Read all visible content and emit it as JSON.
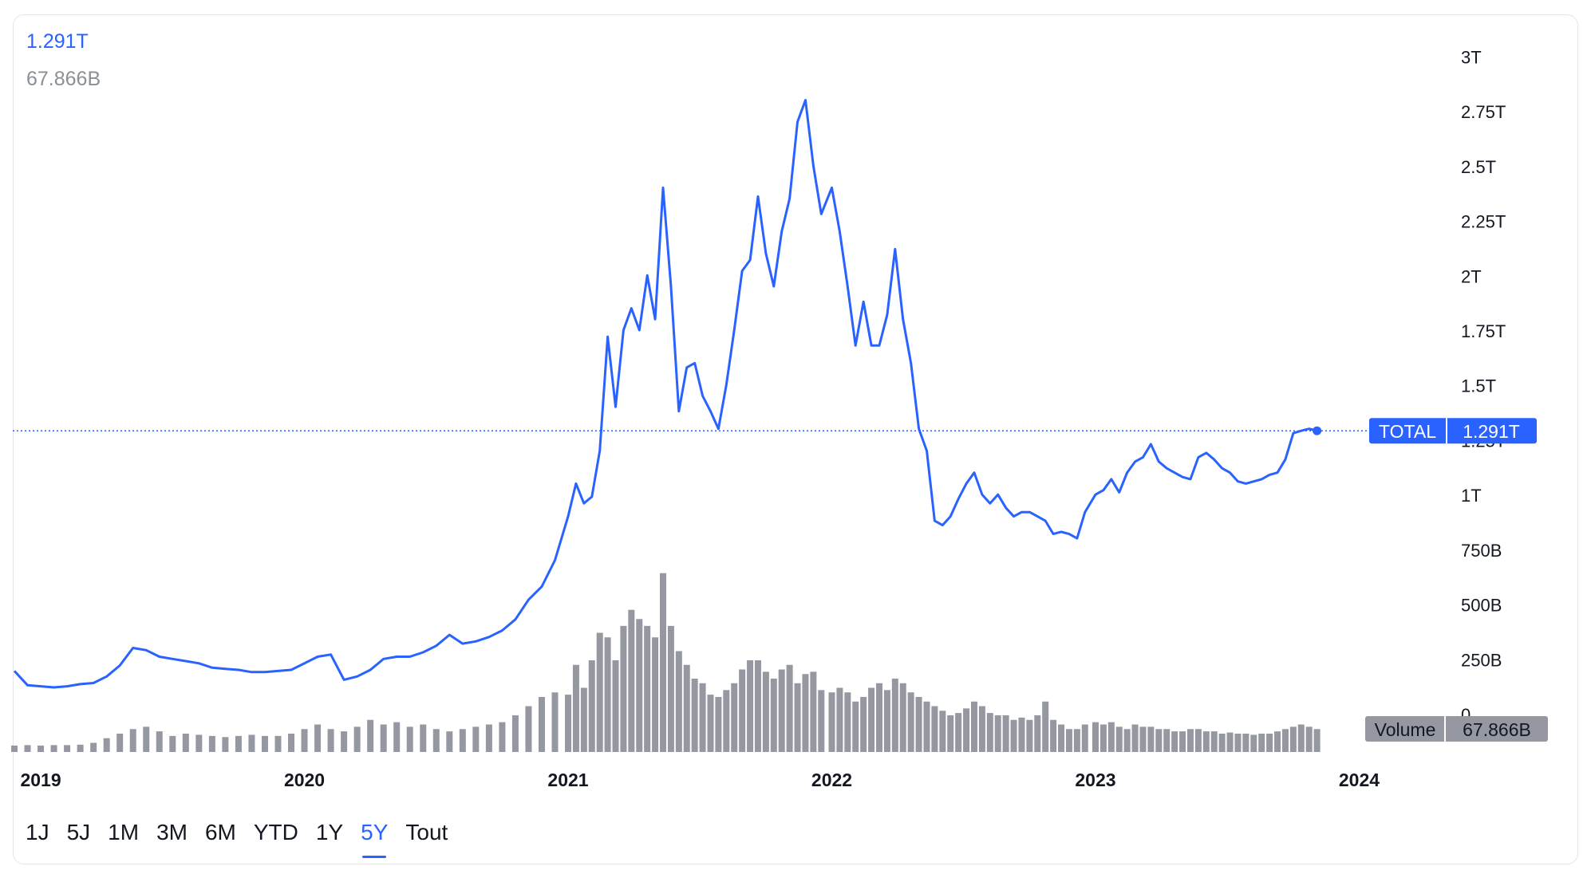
{
  "legend": {
    "total_value": "1.291T",
    "volume_value": "67.866B"
  },
  "range_buttons": [
    {
      "label": "1J"
    },
    {
      "label": "5J"
    },
    {
      "label": "1M"
    },
    {
      "label": "3M"
    },
    {
      "label": "6M"
    },
    {
      "label": "YTD"
    },
    {
      "label": "1Y"
    },
    {
      "label": "5Y",
      "active": true
    },
    {
      "label": "Tout"
    }
  ],
  "colors": {
    "line": "#2962ff",
    "volume_bars": "#9598a1",
    "axis_text": "#131722"
  },
  "chart_data": {
    "type": "line",
    "x_tick_labels": [
      "2019",
      "2020",
      "2021",
      "2022",
      "2023",
      "2024"
    ],
    "y_tick_labels": [
      "0",
      "250B",
      "500B",
      "750B",
      "1T",
      "1.25T",
      "1.5T",
      "1.75T",
      "2T",
      "2.25T",
      "2.5T",
      "2.75T",
      "3T"
    ],
    "y_ticks": [
      0,
      0.25,
      0.5,
      0.75,
      1,
      1.25,
      1.5,
      1.75,
      2,
      2.25,
      2.5,
      2.75,
      3
    ],
    "y_unit": "T",
    "ylim": [
      0,
      3.02
    ],
    "xlim": [
      2018.9,
      2024.05
    ],
    "last_price_label": {
      "name": "TOTAL",
      "value": "1.291T",
      "y": 1.291
    },
    "volume_label": {
      "name": "Volume",
      "value": "67.866B"
    },
    "series": [
      {
        "name": "TOTAL",
        "x": [
          2018.9,
          2018.95,
          2019.0,
          2019.05,
          2019.1,
          2019.15,
          2019.2,
          2019.25,
          2019.3,
          2019.35,
          2019.4,
          2019.45,
          2019.5,
          2019.55,
          2019.6,
          2019.65,
          2019.7,
          2019.75,
          2019.8,
          2019.85,
          2019.9,
          2019.95,
          2020.0,
          2020.05,
          2020.1,
          2020.15,
          2020.2,
          2020.25,
          2020.3,
          2020.35,
          2020.4,
          2020.45,
          2020.5,
          2020.55,
          2020.6,
          2020.65,
          2020.7,
          2020.75,
          2020.8,
          2020.85,
          2020.9,
          2020.95,
          2021.0,
          2021.03,
          2021.06,
          2021.09,
          2021.12,
          2021.15,
          2021.18,
          2021.21,
          2021.24,
          2021.27,
          2021.3,
          2021.33,
          2021.36,
          2021.39,
          2021.42,
          2021.45,
          2021.48,
          2021.51,
          2021.54,
          2021.57,
          2021.6,
          2021.63,
          2021.66,
          2021.69,
          2021.72,
          2021.75,
          2021.78,
          2021.81,
          2021.84,
          2021.87,
          2021.9,
          2021.93,
          2021.96,
          2022.0,
          2022.03,
          2022.06,
          2022.09,
          2022.12,
          2022.15,
          2022.18,
          2022.21,
          2022.24,
          2022.27,
          2022.3,
          2022.33,
          2022.36,
          2022.39,
          2022.42,
          2022.45,
          2022.48,
          2022.51,
          2022.54,
          2022.57,
          2022.6,
          2022.63,
          2022.66,
          2022.69,
          2022.72,
          2022.75,
          2022.78,
          2022.81,
          2022.84,
          2022.87,
          2022.9,
          2022.93,
          2022.96,
          2023.0,
          2023.03,
          2023.06,
          2023.09,
          2023.12,
          2023.15,
          2023.18,
          2023.21,
          2023.24,
          2023.27,
          2023.3,
          2023.33,
          2023.36,
          2023.39,
          2023.42,
          2023.45,
          2023.48,
          2023.51,
          2023.54,
          2023.57,
          2023.6,
          2023.63,
          2023.66,
          2023.69,
          2023.72,
          2023.75,
          2023.78,
          2023.81,
          2023.84
        ],
        "values": [
          0.195,
          0.13,
          0.125,
          0.12,
          0.125,
          0.135,
          0.14,
          0.17,
          0.22,
          0.3,
          0.29,
          0.26,
          0.25,
          0.24,
          0.23,
          0.21,
          0.205,
          0.2,
          0.19,
          0.19,
          0.195,
          0.2,
          0.23,
          0.26,
          0.27,
          0.155,
          0.17,
          0.2,
          0.25,
          0.26,
          0.26,
          0.28,
          0.31,
          0.36,
          0.32,
          0.33,
          0.35,
          0.38,
          0.43,
          0.52,
          0.58,
          0.7,
          0.9,
          1.05,
          0.96,
          0.99,
          1.2,
          1.72,
          1.4,
          1.75,
          1.85,
          1.75,
          2.0,
          1.8,
          2.4,
          1.95,
          1.38,
          1.58,
          1.6,
          1.45,
          1.38,
          1.3,
          1.5,
          1.75,
          2.02,
          2.07,
          2.36,
          2.1,
          1.95,
          2.2,
          2.35,
          2.7,
          2.8,
          2.5,
          2.28,
          2.4,
          2.2,
          1.95,
          1.68,
          1.88,
          1.68,
          1.68,
          1.82,
          2.12,
          1.8,
          1.6,
          1.3,
          1.2,
          0.88,
          0.86,
          0.9,
          0.98,
          1.05,
          1.1,
          1.0,
          0.96,
          1.0,
          0.94,
          0.9,
          0.92,
          0.92,
          0.9,
          0.88,
          0.82,
          0.83,
          0.82,
          0.8,
          0.92,
          1.0,
          1.02,
          1.07,
          1.01,
          1.1,
          1.15,
          1.17,
          1.23,
          1.15,
          1.12,
          1.1,
          1.08,
          1.07,
          1.17,
          1.19,
          1.16,
          1.12,
          1.1,
          1.06,
          1.05,
          1.06,
          1.07,
          1.09,
          1.1,
          1.16,
          1.28,
          1.291,
          1.3,
          1.291
        ]
      },
      {
        "name": "Volume",
        "x": [
          2018.9,
          2018.95,
          2019.0,
          2019.05,
          2019.1,
          2019.15,
          2019.2,
          2019.25,
          2019.3,
          2019.35,
          2019.4,
          2019.45,
          2019.5,
          2019.55,
          2019.6,
          2019.65,
          2019.7,
          2019.75,
          2019.8,
          2019.85,
          2019.9,
          2019.95,
          2020.0,
          2020.05,
          2020.1,
          2020.15,
          2020.2,
          2020.25,
          2020.3,
          2020.35,
          2020.4,
          2020.45,
          2020.5,
          2020.55,
          2020.6,
          2020.65,
          2020.7,
          2020.75,
          2020.8,
          2020.85,
          2020.9,
          2020.95,
          2021.0,
          2021.03,
          2021.06,
          2021.09,
          2021.12,
          2021.15,
          2021.18,
          2021.21,
          2021.24,
          2021.27,
          2021.3,
          2021.33,
          2021.36,
          2021.39,
          2021.42,
          2021.45,
          2021.48,
          2021.51,
          2021.54,
          2021.57,
          2021.6,
          2021.63,
          2021.66,
          2021.69,
          2021.72,
          2021.75,
          2021.78,
          2021.81,
          2021.84,
          2021.87,
          2021.9,
          2021.93,
          2021.96,
          2022.0,
          2022.03,
          2022.06,
          2022.09,
          2022.12,
          2022.15,
          2022.18,
          2022.21,
          2022.24,
          2022.27,
          2022.3,
          2022.33,
          2022.36,
          2022.39,
          2022.42,
          2022.45,
          2022.48,
          2022.51,
          2022.54,
          2022.57,
          2022.6,
          2022.63,
          2022.66,
          2022.69,
          2022.72,
          2022.75,
          2022.78,
          2022.81,
          2022.84,
          2022.87,
          2022.9,
          2022.93,
          2022.96,
          2023.0,
          2023.03,
          2023.06,
          2023.09,
          2023.12,
          2023.15,
          2023.18,
          2023.21,
          2023.24,
          2023.27,
          2023.3,
          2023.33,
          2023.36,
          2023.39,
          2023.42,
          2023.45,
          2023.48,
          2023.51,
          2023.54,
          2023.57,
          2023.6,
          2023.63,
          2023.66,
          2023.69,
          2023.72,
          2023.75,
          2023.78,
          2023.81,
          2023.84
        ],
        "values": [
          0.028,
          0.03,
          0.028,
          0.03,
          0.03,
          0.032,
          0.04,
          0.06,
          0.08,
          0.1,
          0.11,
          0.09,
          0.07,
          0.08,
          0.075,
          0.07,
          0.065,
          0.07,
          0.075,
          0.07,
          0.07,
          0.08,
          0.1,
          0.12,
          0.1,
          0.09,
          0.11,
          0.14,
          0.12,
          0.13,
          0.11,
          0.12,
          0.1,
          0.09,
          0.1,
          0.11,
          0.12,
          0.13,
          0.16,
          0.2,
          0.24,
          0.26,
          0.25,
          0.38,
          0.28,
          0.4,
          0.52,
          0.5,
          0.4,
          0.55,
          0.62,
          0.58,
          0.55,
          0.5,
          0.78,
          0.55,
          0.44,
          0.38,
          0.32,
          0.3,
          0.25,
          0.24,
          0.27,
          0.3,
          0.36,
          0.4,
          0.4,
          0.35,
          0.32,
          0.36,
          0.38,
          0.3,
          0.34,
          0.35,
          0.27,
          0.26,
          0.28,
          0.26,
          0.22,
          0.24,
          0.28,
          0.3,
          0.27,
          0.32,
          0.3,
          0.26,
          0.24,
          0.22,
          0.2,
          0.18,
          0.16,
          0.17,
          0.19,
          0.22,
          0.2,
          0.17,
          0.16,
          0.16,
          0.14,
          0.15,
          0.14,
          0.16,
          0.22,
          0.14,
          0.12,
          0.1,
          0.1,
          0.12,
          0.13,
          0.12,
          0.13,
          0.11,
          0.1,
          0.12,
          0.11,
          0.11,
          0.1,
          0.1,
          0.09,
          0.09,
          0.1,
          0.1,
          0.09,
          0.09,
          0.08,
          0.085,
          0.08,
          0.08,
          0.075,
          0.08,
          0.08,
          0.09,
          0.1,
          0.11,
          0.12,
          0.11,
          0.1
        ]
      }
    ]
  }
}
